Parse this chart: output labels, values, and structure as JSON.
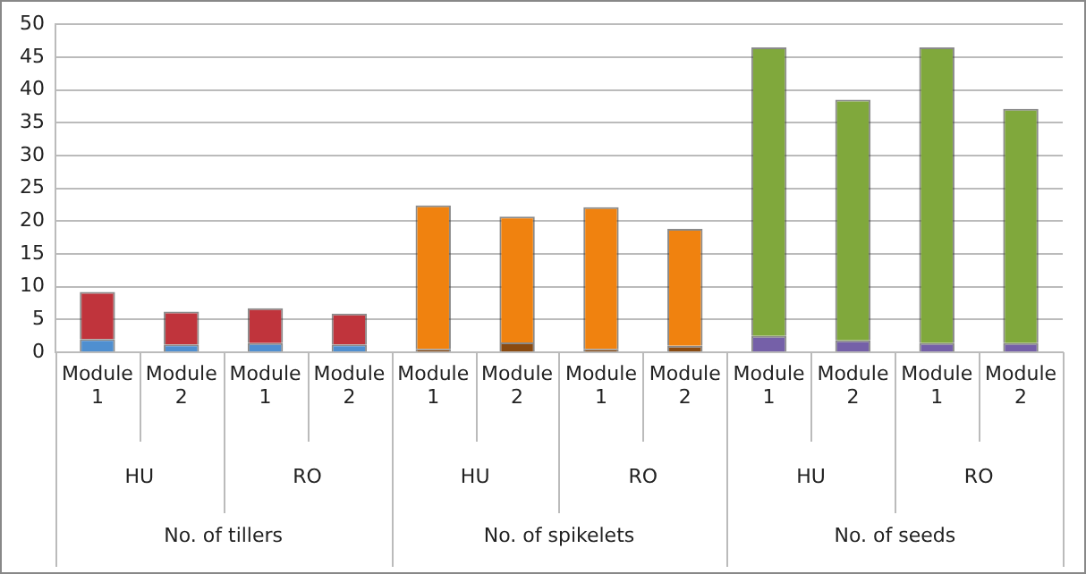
{
  "chart_data": {
    "type": "bar",
    "stacked": true,
    "grid": "y",
    "legend": false,
    "categories": [
      "Module 1",
      "Module 2",
      "Module 1",
      "Module 2",
      "Module 1",
      "Module 2",
      "Module 1",
      "Module 2",
      "Module 1",
      "Module 2",
      "Module 1",
      "Module 2"
    ],
    "series": [
      {
        "colors": [
          "#4f8fd0",
          "#4f8fd0",
          "#4f8fd0",
          "#4f8fd0",
          "#8a4a10",
          "#8a4a10",
          "#8a4a10",
          "#8a4a10",
          "#7560a8",
          "#7560a8",
          "#7560a8",
          "#7560a8"
        ],
        "values": [
          2,
          1.2,
          1.4,
          1.2,
          0.5,
          1.5,
          0.5,
          1,
          2.5,
          1.8,
          1.4,
          1.4
        ]
      },
      {
        "colors": [
          "#c0343c",
          "#c0343c",
          "#c0343c",
          "#c0343c",
          "#f0820f",
          "#f0820f",
          "#f0820f",
          "#f0820f",
          "#80a83c",
          "#80a83c",
          "#80a83c",
          "#80a83c"
        ],
        "values": [
          7.2,
          5,
          5.3,
          4.7,
          21.9,
          19.2,
          21.6,
          17.8,
          44,
          36.7,
          45.1,
          35.7
        ]
      }
    ],
    "ylim": [
      0,
      50
    ],
    "yticks": [
      0,
      5,
      10,
      15,
      20,
      25,
      30,
      35,
      40,
      45,
      50
    ],
    "annotations": [
      "HU",
      "RO",
      "HU",
      "RO",
      "HU",
      "RO",
      "No. of tillers",
      "No. of spikelets",
      "No. of seeds"
    ]
  }
}
